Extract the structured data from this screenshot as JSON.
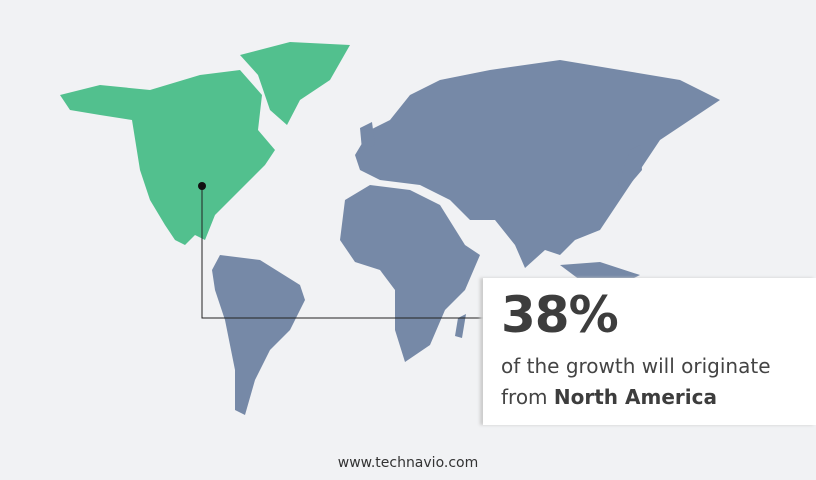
{
  "colors": {
    "highlight": "#52c08e",
    "land": "#7689a7",
    "background": "#f1f2f4"
  },
  "callout": {
    "value": "38%",
    "text_line1": "of the growth will originate",
    "text_line2_prefix": "from",
    "region": "North America"
  },
  "highlighted_region": "North America",
  "footer": {
    "url": "www.technavio.com"
  }
}
